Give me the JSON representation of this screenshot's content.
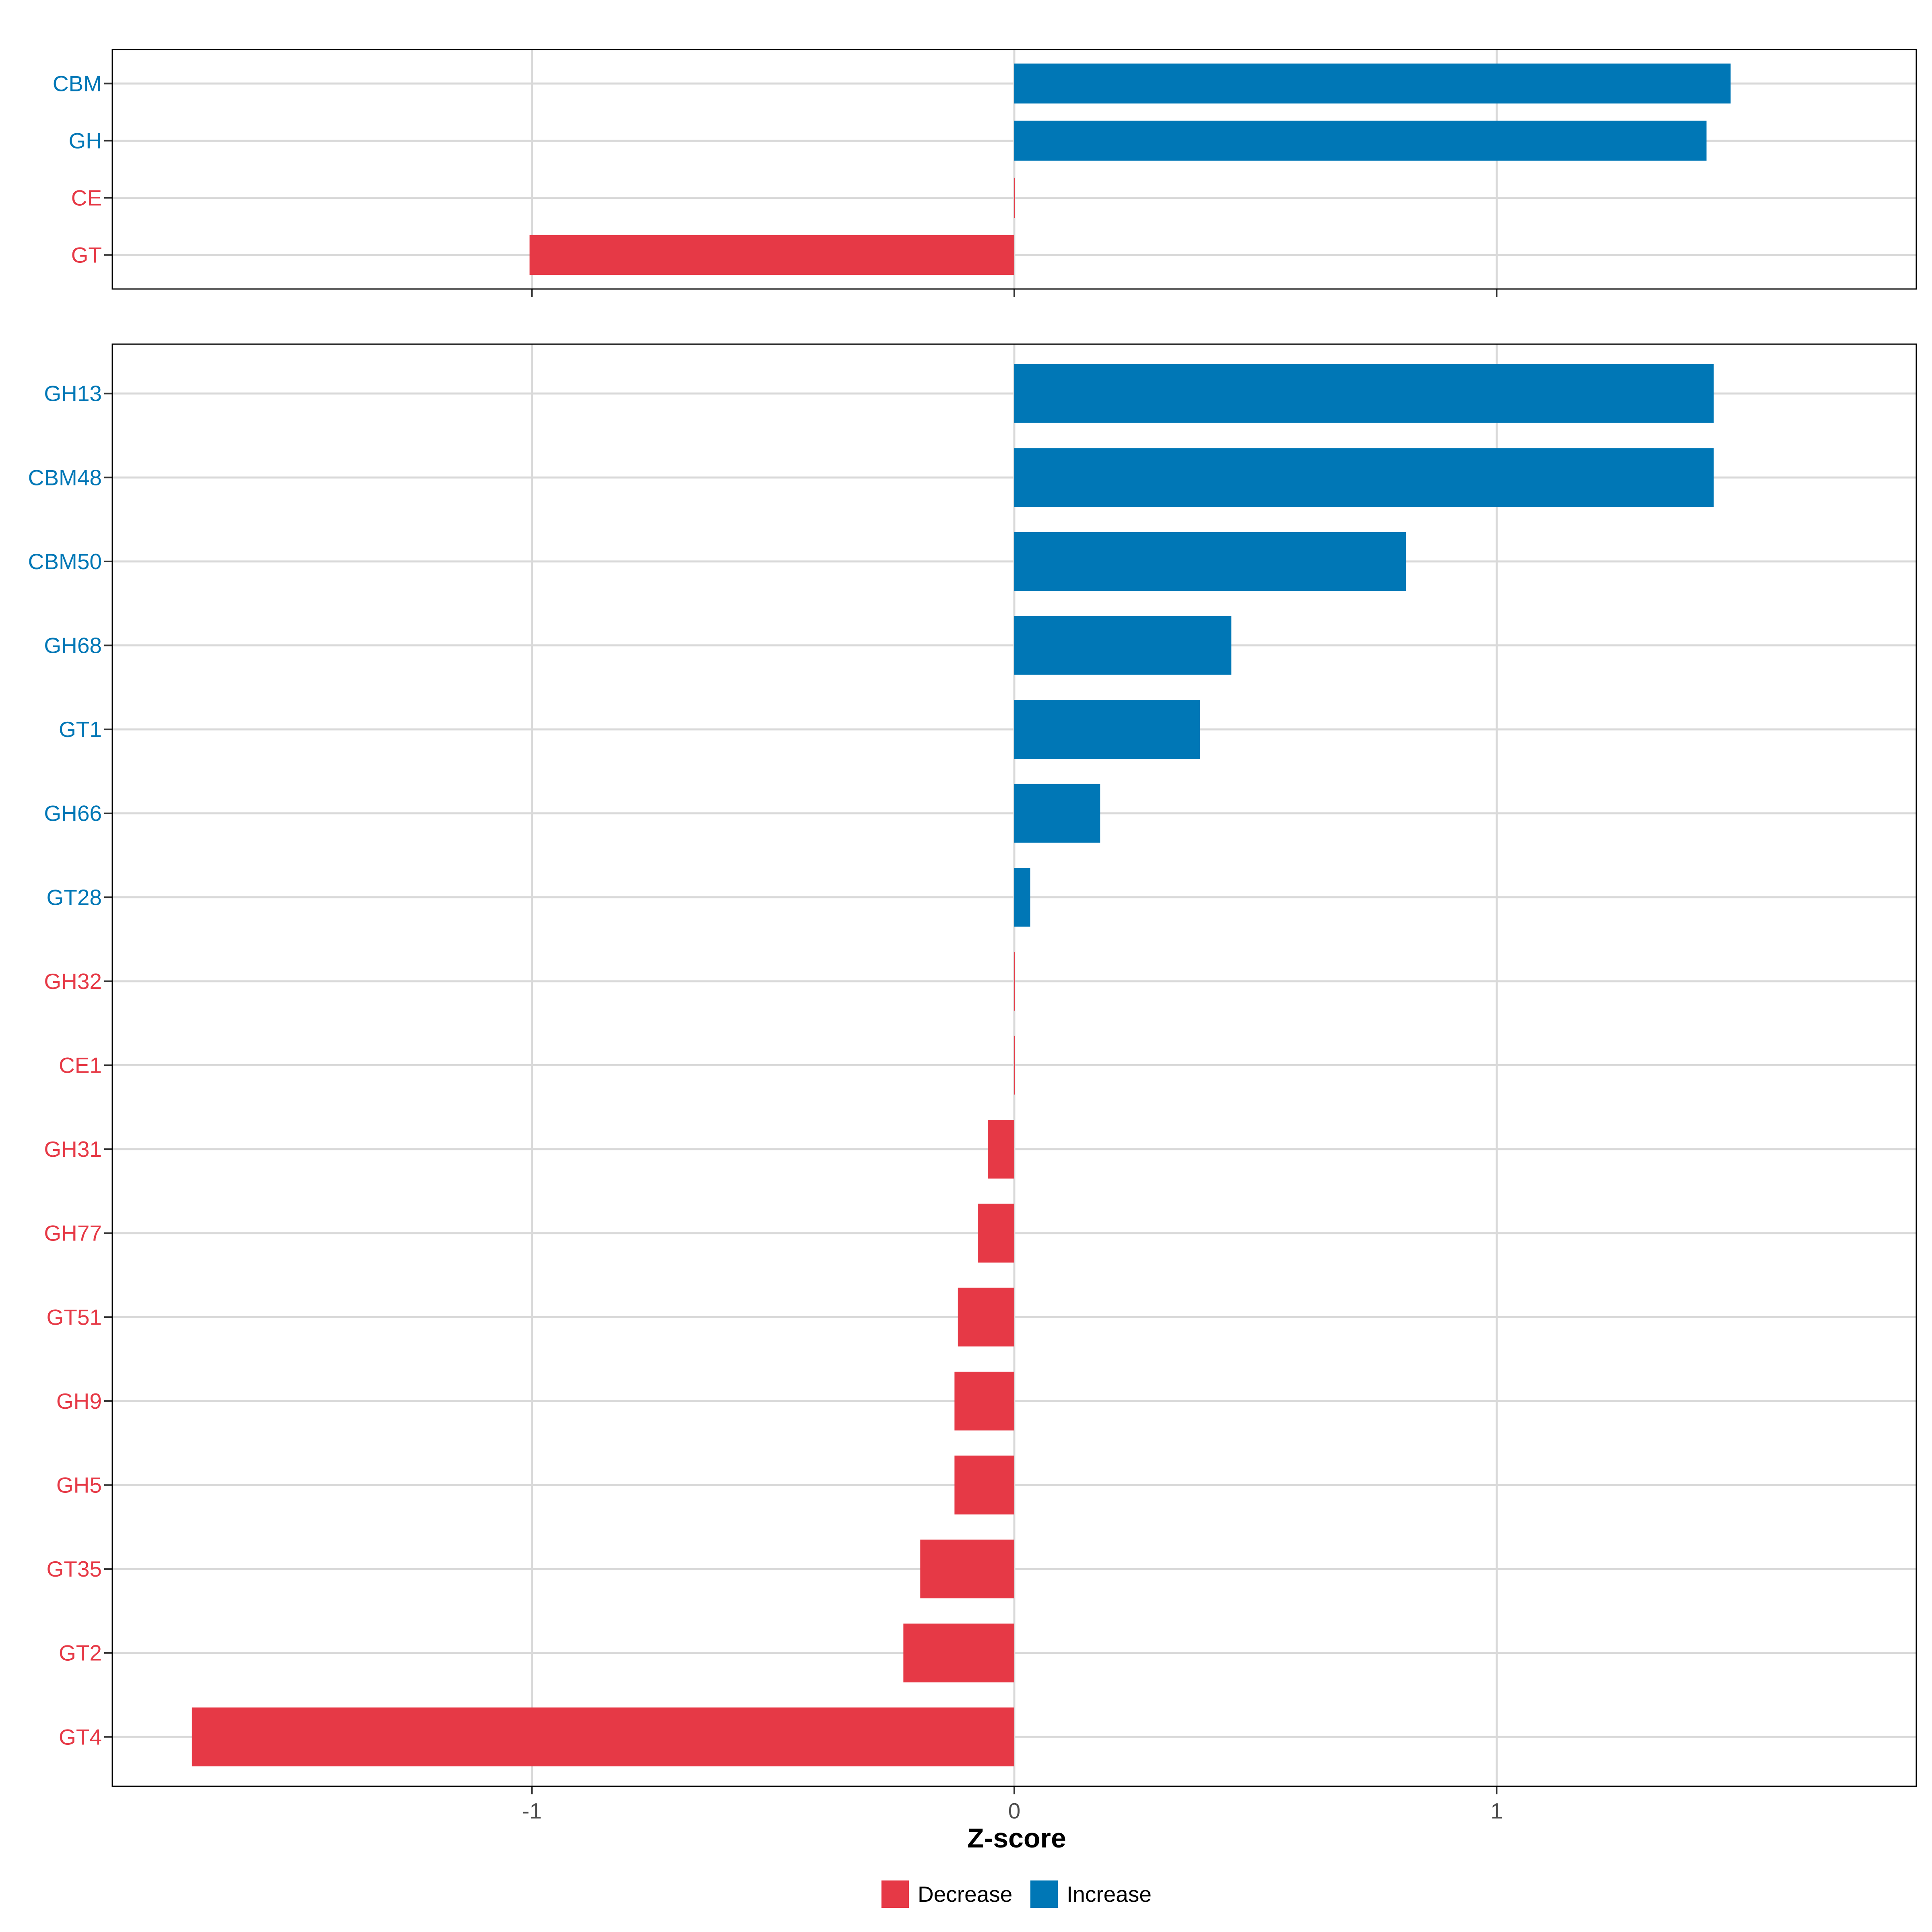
{
  "colors": {
    "decrease": "#E63946",
    "increase": "#0077B6"
  },
  "chart_data": [
    {
      "type": "bar",
      "orientation": "horizontal",
      "panel": "top",
      "categories": [
        "CBM",
        "GH",
        "CE",
        "GT"
      ],
      "values": [
        1.485,
        1.435,
        0.0,
        -1.005
      ],
      "direction": [
        "Increase",
        "Increase",
        "Decrease",
        "Decrease"
      ],
      "xlim": [
        -1.87,
        1.87
      ],
      "grid": true
    },
    {
      "type": "bar",
      "orientation": "horizontal",
      "panel": "bottom",
      "categories": [
        "GH13",
        "CBM48",
        "CBM50",
        "GH68",
        "GT1",
        "GH66",
        "GT28",
        "GH32",
        "CE1",
        "GH31",
        "GH77",
        "GT51",
        "GH9",
        "GH5",
        "GT35",
        "GT2",
        "GT4"
      ],
      "values": [
        1.45,
        1.45,
        0.812,
        0.45,
        0.385,
        0.178,
        0.033,
        0.0,
        0.0,
        -0.055,
        -0.075,
        -0.117,
        -0.124,
        -0.124,
        -0.195,
        -0.23,
        -1.705
      ],
      "direction": [
        "Increase",
        "Increase",
        "Increase",
        "Increase",
        "Increase",
        "Increase",
        "Increase",
        "Decrease",
        "Decrease",
        "Decrease",
        "Decrease",
        "Decrease",
        "Decrease",
        "Decrease",
        "Decrease",
        "Decrease",
        "Decrease"
      ],
      "xlim": [
        -1.87,
        1.87
      ],
      "grid": true
    }
  ],
  "x_axis": {
    "title": "Z-score",
    "ticks": [
      -1,
      0,
      1
    ],
    "tick_labels": [
      "-1",
      "0",
      "1"
    ]
  },
  "legend": {
    "position": "bottom",
    "items": [
      {
        "label": "Decrease",
        "color_key": "decrease"
      },
      {
        "label": "Increase",
        "color_key": "increase"
      }
    ]
  }
}
